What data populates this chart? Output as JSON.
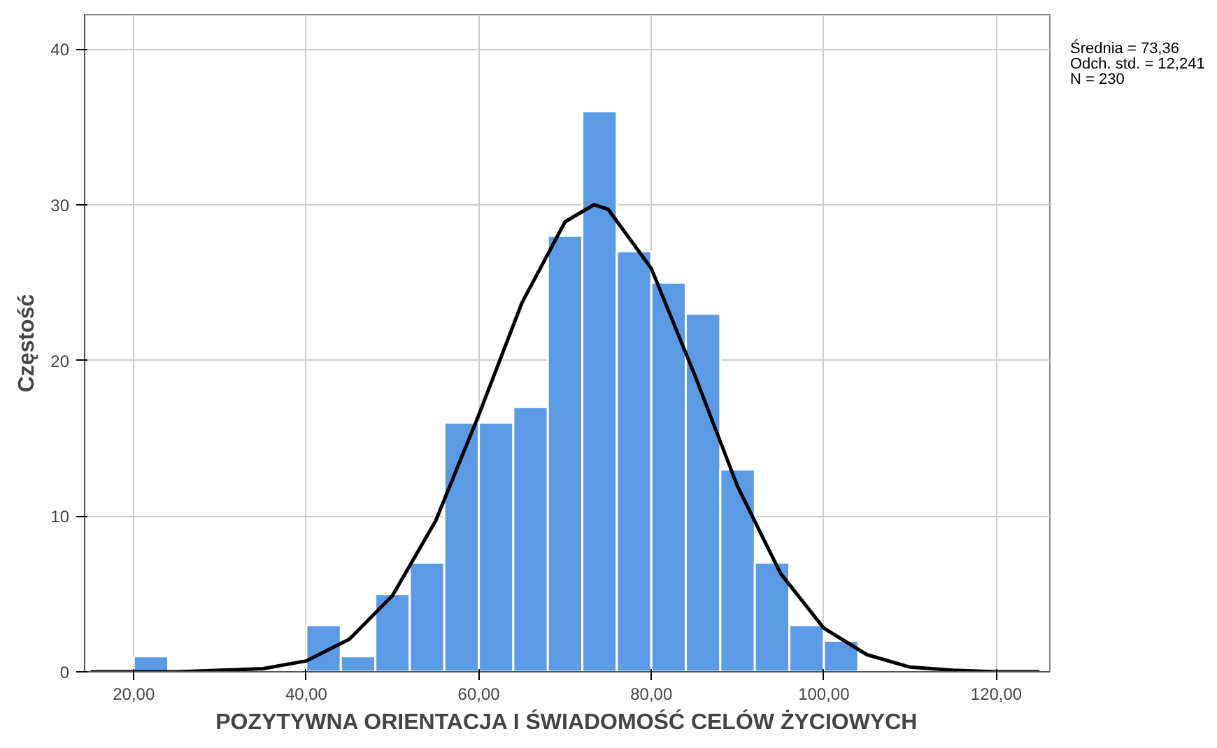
{
  "chart_data": {
    "type": "histogram",
    "xlabel": "POZYTYWNA ORIENTACJA I ŚWIADOMOŚĆ CELÓW ŻYCIOWYCH",
    "ylabel": "Częstość",
    "bins": [
      20,
      24,
      28,
      32,
      36,
      40,
      44,
      48,
      52,
      56,
      60,
      64,
      68,
      72,
      76,
      80,
      84,
      88,
      92,
      96,
      100,
      104
    ],
    "values": [
      1,
      0,
      0,
      0,
      0,
      3,
      1,
      5,
      7,
      16,
      16,
      17,
      28,
      36,
      27,
      25,
      23,
      13,
      7,
      3,
      2
    ],
    "color": "#5b9be6",
    "series": [
      {
        "type": "line",
        "color": "#000000",
        "x": [
          15,
          20,
          25,
          30,
          35,
          40,
          45,
          50,
          55,
          60,
          65,
          70,
          73.36,
          75,
          80,
          85,
          90,
          95,
          100,
          105,
          110,
          115,
          120,
          125
        ],
        "values": [
          0,
          0,
          0,
          0.1,
          0.2,
          0.7,
          2.1,
          4.9,
          9.7,
          16.5,
          23.7,
          28.9,
          30,
          29.7,
          25.9,
          19.1,
          11.9,
          6.3,
          2.8,
          1.1,
          0.3,
          0.1,
          0,
          0
        ]
      }
    ],
    "xlim": [
      14.3,
      126.2
    ],
    "ylim": [
      0,
      42.2
    ],
    "xticks": [
      {
        "value": 20,
        "label": "20,00"
      },
      {
        "value": 40,
        "label": "40,00"
      },
      {
        "value": 60,
        "label": "60,00"
      },
      {
        "value": 80,
        "label": "80,00"
      },
      {
        "value": 100,
        "label": "100,00"
      },
      {
        "value": 120,
        "label": "120,00"
      }
    ],
    "yticks": [
      0,
      10,
      20,
      30,
      40
    ],
    "grid": true,
    "annotations": [
      "Średnia = 73,36",
      "Odch. std. = 12,241",
      "N = 230"
    ]
  }
}
